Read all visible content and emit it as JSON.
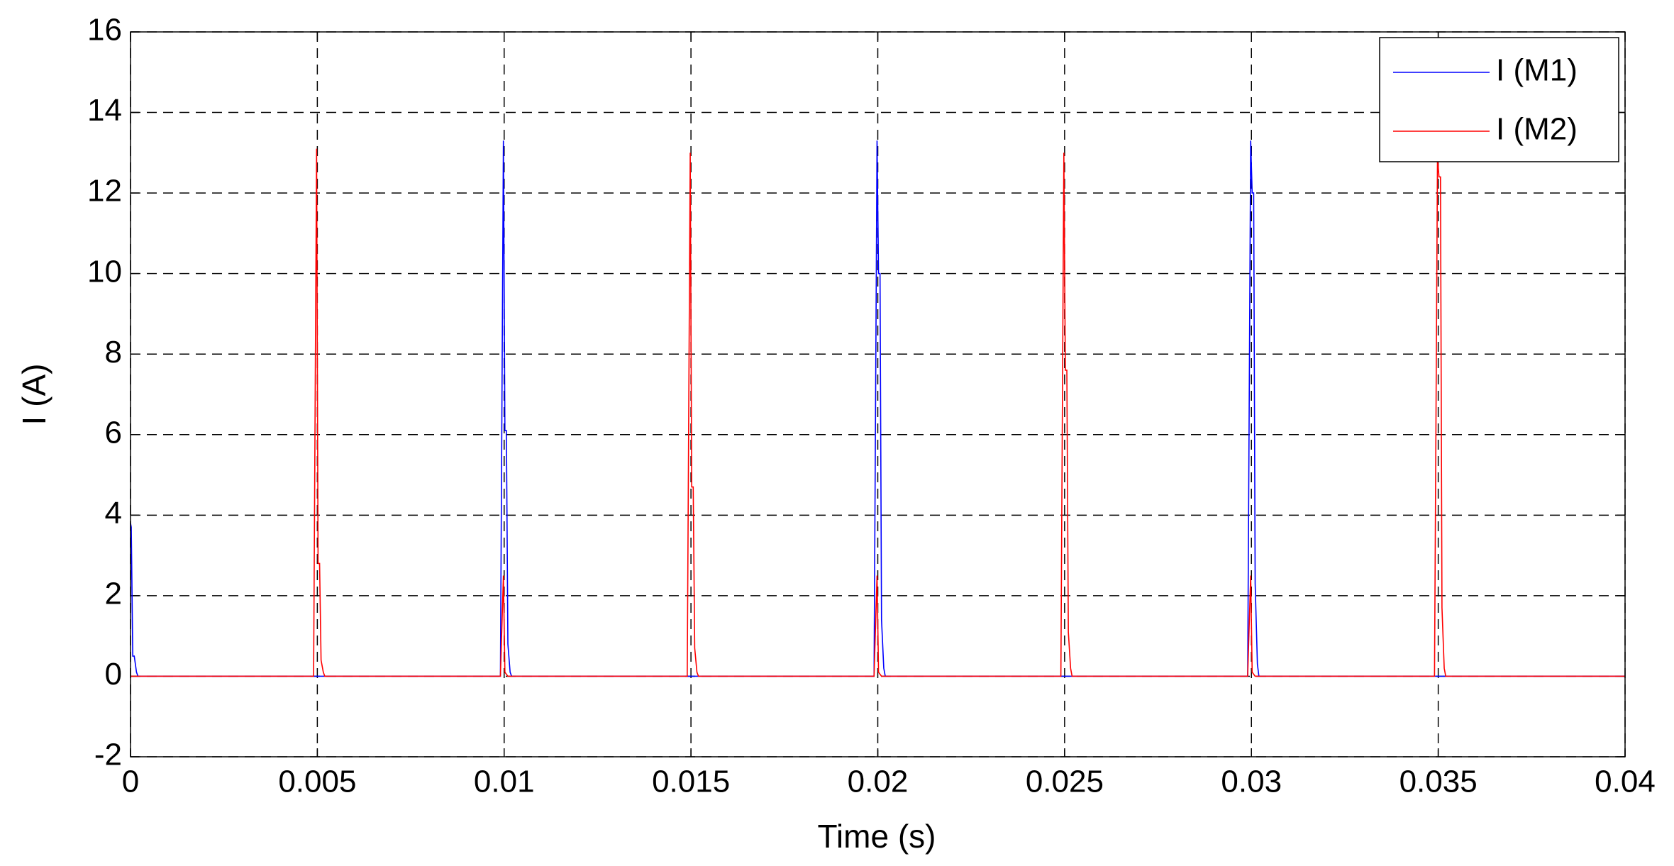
{
  "chart_data": {
    "type": "line",
    "x_label": "Time (s)",
    "y_label": "I (A)",
    "xlim": [
      0,
      0.04
    ],
    "xticks": [
      0,
      0.005,
      0.01,
      0.015,
      0.02,
      0.025,
      0.03,
      0.035,
      0.04
    ],
    "ylim": [
      -2,
      16
    ],
    "yticks": [
      -2,
      0,
      2,
      4,
      6,
      8,
      10,
      12,
      14,
      16
    ],
    "grid": true,
    "legend": "upper right",
    "series": [
      {
        "name": "I (M1)",
        "color": "#0000ff",
        "x": [
          0,
          2e-05,
          6e-05,
          0.0001,
          0.00016,
          0.0002,
          0.0099,
          0.00998,
          0.01002,
          0.01006,
          0.0101,
          0.01016,
          0.0102,
          0.0199,
          0.01998,
          0.02002,
          0.02006,
          0.0201,
          0.02016,
          0.0202,
          0.0299,
          0.02998,
          0.03002,
          0.03006,
          0.0301,
          0.03016,
          0.0302,
          0.04
        ],
        "values": [
          3.8,
          3.7,
          0.5,
          0.5,
          0.1,
          0,
          0,
          13.3,
          6.1,
          6.1,
          0.8,
          0.1,
          0,
          0,
          13.3,
          10,
          10,
          1.4,
          0.2,
          0,
          0,
          13.3,
          12,
          12,
          2.3,
          0.3,
          0,
          0
        ]
      },
      {
        "name": "I (M2)",
        "color": "#ff0000",
        "x": [
          0,
          0.0049,
          0.00498,
          0.00502,
          0.00506,
          0.0051,
          0.00516,
          0.0052,
          0.0099,
          0.00998,
          0.01002,
          0.0101,
          0.0149,
          0.01498,
          0.01502,
          0.01506,
          0.0151,
          0.01516,
          0.0152,
          0.0199,
          0.01998,
          0.02002,
          0.0201,
          0.0249,
          0.02498,
          0.02502,
          0.02506,
          0.0251,
          0.02516,
          0.0252,
          0.0299,
          0.02998,
          0.03002,
          0.0301,
          0.0349,
          0.03498,
          0.03502,
          0.03506,
          0.0351,
          0.03516,
          0.0352,
          0.04
        ],
        "values": [
          0,
          0,
          13.1,
          2.8,
          2.8,
          0.4,
          0.1,
          0,
          0,
          2.5,
          0.1,
          0,
          0,
          13,
          4.7,
          4.7,
          0.7,
          0.1,
          0,
          0,
          2.5,
          0.1,
          0,
          0,
          13,
          7.6,
          7.6,
          1.1,
          0.2,
          0,
          0,
          2.5,
          0.1,
          0,
          0,
          12.9,
          12.4,
          12.4,
          1.7,
          0.2,
          0,
          0
        ]
      }
    ]
  }
}
